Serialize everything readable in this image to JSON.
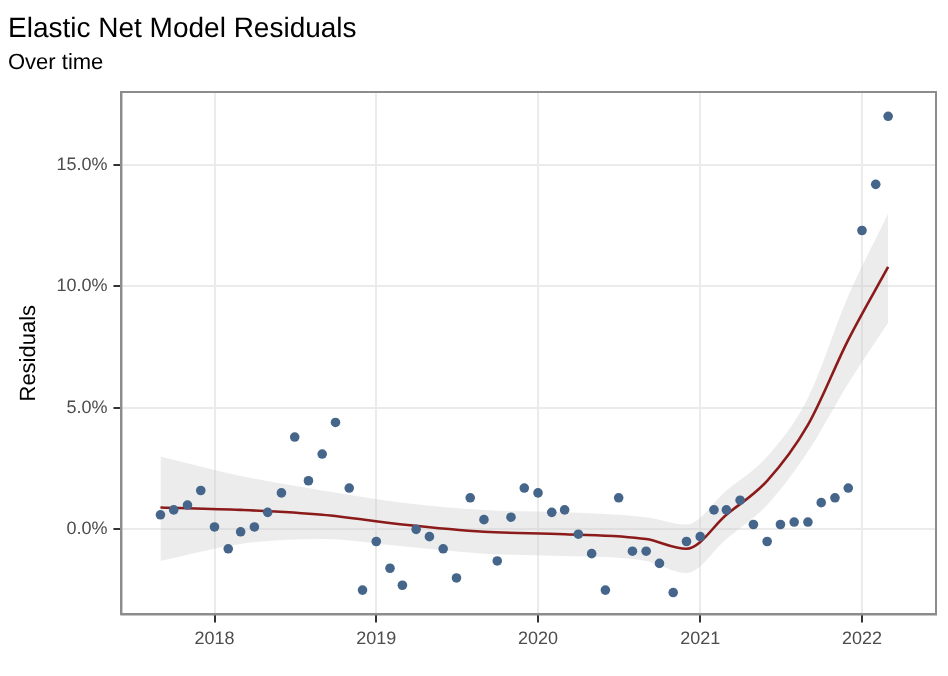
{
  "chart_data": {
    "type": "scatter",
    "title": "Elastic Net Model Residuals",
    "subtitle": "Over time",
    "ylabel": "Residuals",
    "series": [
      {
        "color": "#45668a",
        "x": [
          "2017-09",
          "2017-10",
          "2017-11",
          "2017-12",
          "2018-01",
          "2018-02",
          "2018-03",
          "2018-04",
          "2018-05",
          "2018-06",
          "2018-07",
          "2018-08",
          "2018-09",
          "2018-10",
          "2018-11",
          "2018-12",
          "2019-01",
          "2019-02",
          "2019-03",
          "2019-04",
          "2019-05",
          "2019-06",
          "2019-07",
          "2019-08",
          "2019-09",
          "2019-10",
          "2019-11",
          "2019-12",
          "2020-01",
          "2020-02",
          "2020-03",
          "2020-04",
          "2020-05",
          "2020-06",
          "2020-07",
          "2020-08",
          "2020-09",
          "2020-10",
          "2020-11",
          "2020-12",
          "2021-01",
          "2021-02",
          "2021-03",
          "2021-04",
          "2021-05",
          "2021-06",
          "2021-07",
          "2021-08",
          "2021-09",
          "2021-10",
          "2021-11",
          "2021-12",
          "2022-01",
          "2022-02",
          "2022-03"
        ],
        "values": [
          0.6,
          0.8,
          1.0,
          1.6,
          0.1,
          -0.8,
          -0.1,
          0.1,
          0.7,
          1.5,
          3.8,
          2.0,
          3.1,
          4.4,
          1.7,
          -2.5,
          -0.5,
          -1.6,
          -2.3,
          0.0,
          -0.3,
          -0.8,
          -2.0,
          1.3,
          0.4,
          -1.3,
          0.5,
          1.7,
          1.5,
          0.7,
          0.8,
          -0.2,
          -1.0,
          -2.5,
          1.3,
          -0.9,
          -0.9,
          -1.4,
          -2.6,
          -0.5,
          -0.3,
          0.8,
          0.8,
          1.2,
          0.2,
          -0.5,
          0.2,
          0.3,
          0.3,
          1.1,
          1.3,
          1.7,
          12.3,
          14.2,
          17.0
        ]
      },
      {
        "type": "line",
        "marker": "none",
        "color": "#8b1a1a",
        "x": [
          "2017-09",
          "2018-03",
          "2018-09",
          "2019-03",
          "2019-09",
          "2020-03",
          "2020-09",
          "2020-12",
          "2021-03",
          "2021-06",
          "2021-09",
          "2021-12",
          "2022-03"
        ],
        "values": [
          0.9,
          0.8,
          0.6,
          0.2,
          -0.1,
          -0.2,
          -0.4,
          -0.8,
          0.6,
          2.0,
          4.3,
          7.8,
          10.8
        ],
        "lower": [
          -1.3,
          -0.6,
          -0.4,
          -0.7,
          -1.0,
          -1.1,
          -1.3,
          -1.8,
          -0.4,
          1.0,
          3.2,
          6.0,
          8.5
        ],
        "upper": [
          3.0,
          2.2,
          1.6,
          1.1,
          0.8,
          0.7,
          0.5,
          0.2,
          1.6,
          3.0,
          5.4,
          9.6,
          13.0
        ]
      }
    ],
    "xlim": [
      "2017-06-05",
      "2022-06-17"
    ],
    "xticks": [
      "2018",
      "2019",
      "2020",
      "2021",
      "2022"
    ],
    "ylim": [
      -3.5,
      18.0
    ],
    "yticks": [
      {
        "value": 0,
        "label": "0.0%"
      },
      {
        "value": 5,
        "label": "5.0%"
      },
      {
        "value": 10,
        "label": "10.0%"
      },
      {
        "value": 15,
        "label": "15.0%"
      }
    ],
    "grid": true,
    "legend": false,
    "marker": "circle",
    "line_style": "solid"
  }
}
